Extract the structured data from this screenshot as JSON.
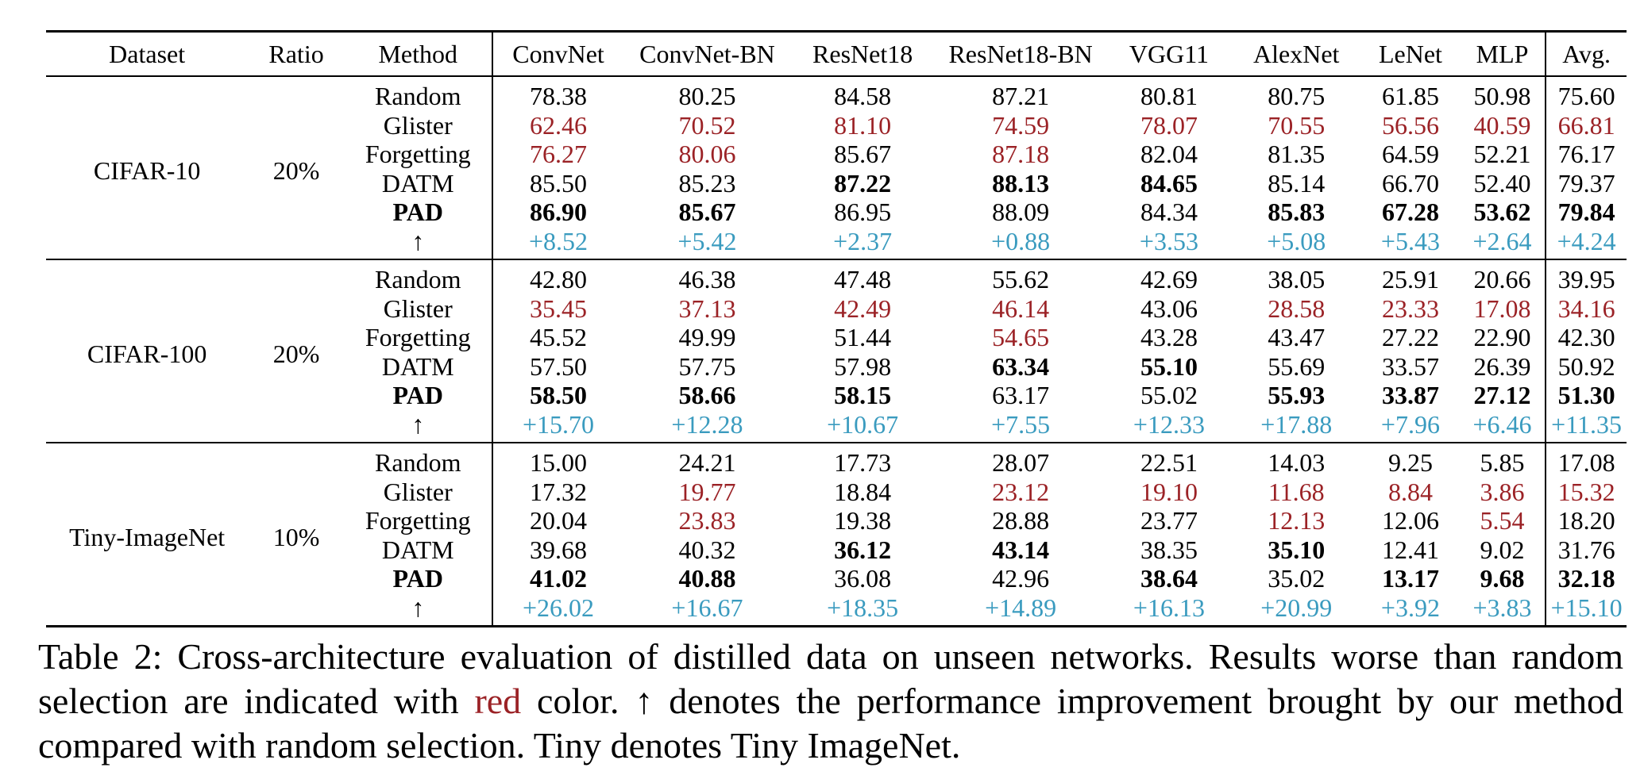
{
  "table": {
    "headers": [
      "Dataset",
      "Ratio",
      "Method",
      "ConvNet",
      "ConvNet-BN",
      "ResNet18",
      "ResNet18-BN",
      "VGG11",
      "AlexNet",
      "LeNet",
      "MLP",
      "Avg."
    ],
    "groups": [
      {
        "dataset": "CIFAR-10",
        "ratio": "20%",
        "rows": [
          {
            "method": "Random",
            "values": [
              "78.38",
              "80.25",
              "84.58",
              "87.21",
              "80.81",
              "80.75",
              "61.85",
              "50.98",
              "75.60"
            ]
          },
          {
            "method": "Glister",
            "values": [
              "62.46",
              "70.52",
              "81.10",
              "74.59",
              "78.07",
              "70.55",
              "56.56",
              "40.59",
              "66.81"
            ]
          },
          {
            "method": "Forgetting",
            "values": [
              "76.27",
              "80.06",
              "85.67",
              "87.18",
              "82.04",
              "81.35",
              "64.59",
              "52.21",
              "76.17"
            ]
          },
          {
            "method": "DATM",
            "values": [
              "85.50",
              "85.23",
              "87.22",
              "88.13",
              "84.65",
              "85.14",
              "66.70",
              "52.40",
              "79.37"
            ]
          },
          {
            "method": "PAD",
            "values": [
              "86.90",
              "85.67",
              "86.95",
              "88.09",
              "84.34",
              "85.83",
              "67.28",
              "53.62",
              "79.84"
            ]
          },
          {
            "method": "↑",
            "values": [
              "+8.52",
              "+5.42",
              "+2.37",
              "+0.88",
              "+3.53",
              "+5.08",
              "+5.43",
              "+2.64",
              "+4.24"
            ]
          }
        ]
      },
      {
        "dataset": "CIFAR-100",
        "ratio": "20%",
        "rows": [
          {
            "method": "Random",
            "values": [
              "42.80",
              "46.38",
              "47.48",
              "55.62",
              "42.69",
              "38.05",
              "25.91",
              "20.66",
              "39.95"
            ]
          },
          {
            "method": "Glister",
            "values": [
              "35.45",
              "37.13",
              "42.49",
              "46.14",
              "43.06",
              "28.58",
              "23.33",
              "17.08",
              "34.16"
            ]
          },
          {
            "method": "Forgetting",
            "values": [
              "45.52",
              "49.99",
              "51.44",
              "54.65",
              "43.28",
              "43.47",
              "27.22",
              "22.90",
              "42.30"
            ]
          },
          {
            "method": "DATM",
            "values": [
              "57.50",
              "57.75",
              "57.98",
              "63.34",
              "55.10",
              "55.69",
              "33.57",
              "26.39",
              "50.92"
            ]
          },
          {
            "method": "PAD",
            "values": [
              "58.50",
              "58.66",
              "58.15",
              "63.17",
              "55.02",
              "55.93",
              "33.87",
              "27.12",
              "51.30"
            ]
          },
          {
            "method": "↑",
            "values": [
              "+15.70",
              "+12.28",
              "+10.67",
              "+7.55",
              "+12.33",
              "+17.88",
              "+7.96",
              "+6.46",
              "+11.35"
            ]
          }
        ]
      },
      {
        "dataset": "Tiny-ImageNet",
        "ratio": "10%",
        "rows": [
          {
            "method": "Random",
            "values": [
              "15.00",
              "24.21",
              "17.73",
              "28.07",
              "22.51",
              "14.03",
              "9.25",
              "5.85",
              "17.08"
            ]
          },
          {
            "method": "Glister",
            "values": [
              "17.32",
              "19.77",
              "18.84",
              "23.12",
              "19.10",
              "11.68",
              "8.84",
              "3.86",
              "15.32"
            ]
          },
          {
            "method": "Forgetting",
            "values": [
              "20.04",
              "23.83",
              "19.38",
              "28.88",
              "23.77",
              "12.13",
              "12.06",
              "5.54",
              "18.20"
            ]
          },
          {
            "method": "DATM",
            "values": [
              "39.68",
              "40.32",
              "36.12",
              "43.14",
              "38.35",
              "35.10",
              "12.41",
              "9.02",
              "31.76"
            ]
          },
          {
            "method": "PAD",
            "values": [
              "41.02",
              "40.88",
              "36.08",
              "42.96",
              "38.64",
              "35.02",
              "13.17",
              "9.68",
              "32.18"
            ]
          },
          {
            "method": "↑",
            "values": [
              "+26.02",
              "+16.67",
              "+18.35",
              "+14.89",
              "+16.13",
              "+20.99",
              "+3.92",
              "+3.83",
              "+15.10"
            ]
          }
        ]
      }
    ]
  },
  "styles": {
    "worse_color": "#9b2226",
    "gain_color": "#3a9bbf",
    "worse_cells": [
      {
        "group": 0,
        "row": 1,
        "cols": [
          0,
          1,
          2,
          3,
          4,
          5,
          6,
          7,
          8
        ]
      },
      {
        "group": 0,
        "row": 2,
        "cols": [
          0,
          1,
          3
        ]
      },
      {
        "group": 1,
        "row": 1,
        "cols": [
          0,
          1,
          2,
          3,
          5,
          6,
          7,
          8
        ]
      },
      {
        "group": 1,
        "row": 2,
        "cols": [
          3
        ]
      },
      {
        "group": 2,
        "row": 1,
        "cols": [
          1,
          3,
          4,
          5,
          6,
          7,
          8
        ]
      },
      {
        "group": 2,
        "row": 2,
        "cols": [
          1,
          5,
          7
        ]
      }
    ],
    "bold_cells": [
      {
        "group": 0,
        "row": 3,
        "cols": [
          2,
          3,
          4
        ]
      },
      {
        "group": 0,
        "row": 4,
        "cols": [
          0,
          1,
          5,
          6,
          7,
          8
        ]
      },
      {
        "group": 1,
        "row": 3,
        "cols": [
          3,
          4
        ]
      },
      {
        "group": 1,
        "row": 4,
        "cols": [
          0,
          1,
          2,
          5,
          6,
          7,
          8
        ]
      },
      {
        "group": 2,
        "row": 3,
        "cols": [
          2,
          3,
          5
        ]
      },
      {
        "group": 2,
        "row": 4,
        "cols": [
          0,
          1,
          4,
          6,
          7,
          8
        ]
      }
    ]
  },
  "caption": {
    "prefix": "Table 2: Cross-architecture evaluation of distilled data on unseen networks. Results worse than random selection are indicated with ",
    "red_word": "red",
    "suffix": " color. ↑ denotes the performance improvement brought by our method compared with random selection. Tiny denotes Tiny ImageNet."
  }
}
